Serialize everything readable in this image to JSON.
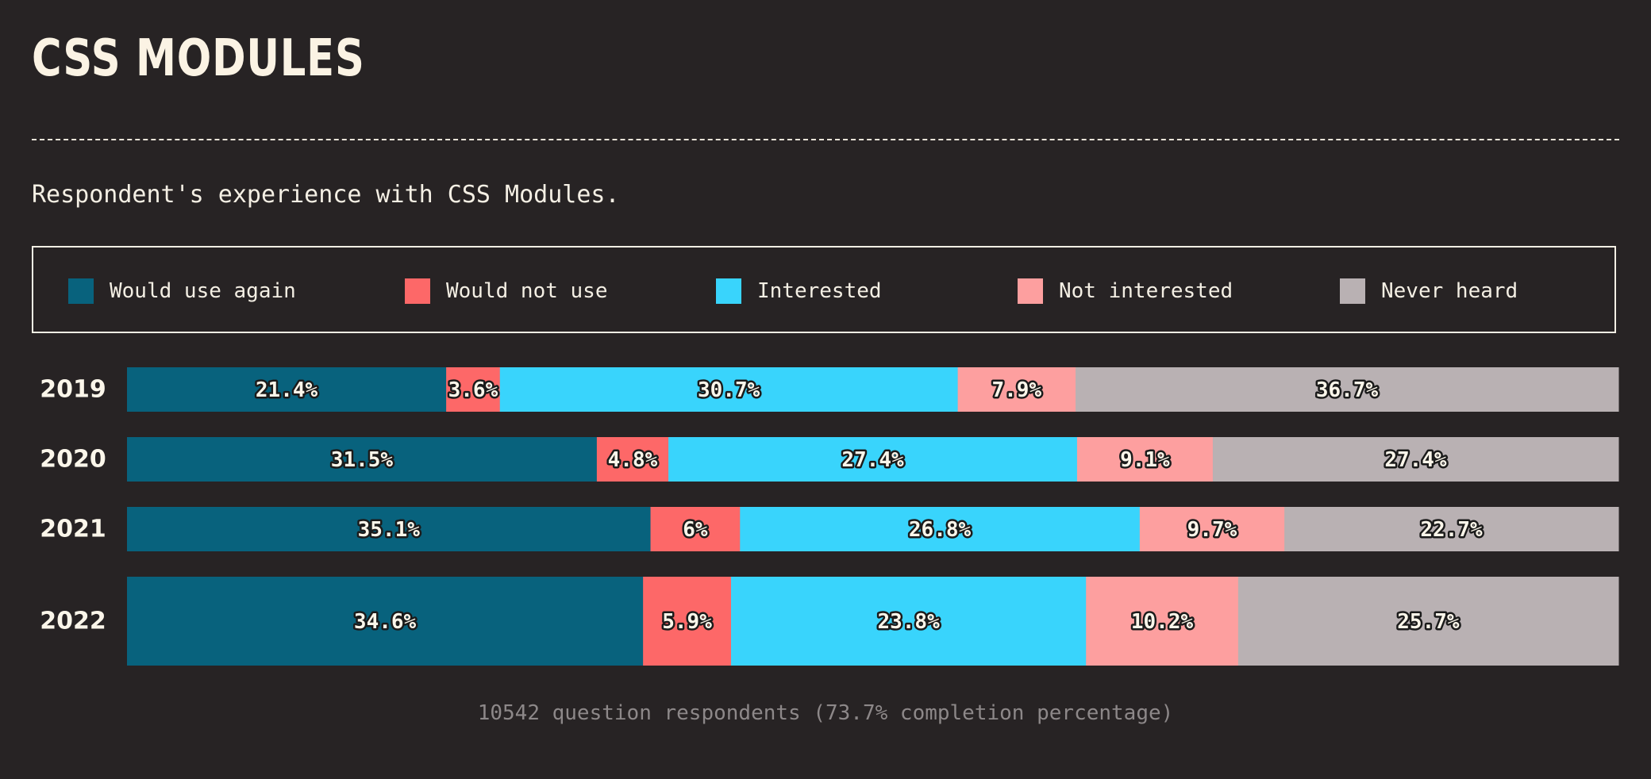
{
  "title": "CSS MODULES",
  "description": "Respondent's experience with CSS Modules.",
  "footer": "10542 question respondents (73.7% completion percentage)",
  "legend": [
    {
      "key": "would_use_again",
      "label": "Would use again",
      "color": "#08627d"
    },
    {
      "key": "would_not_use",
      "label": "Would not use",
      "color": "#fd6868"
    },
    {
      "key": "interested",
      "label": "Interested",
      "color": "#39d4fc"
    },
    {
      "key": "not_interested",
      "label": "Not interested",
      "color": "#fd9f9f"
    },
    {
      "key": "never_heard",
      "label": "Never heard",
      "color": "#b9b1b3"
    }
  ],
  "chart_data": {
    "type": "bar",
    "orientation": "horizontal",
    "stacked": true,
    "unit": "%",
    "categories": [
      "2019",
      "2020",
      "2021",
      "2022"
    ],
    "series": [
      {
        "name": "Would use again",
        "color": "#08627d",
        "values": [
          21.4,
          31.5,
          35.1,
          34.6
        ],
        "labels": [
          "21.4%",
          "31.5%",
          "35.1%",
          "34.6%"
        ]
      },
      {
        "name": "Would not use",
        "color": "#fd6868",
        "values": [
          3.6,
          4.8,
          6,
          5.9
        ],
        "labels": [
          "3.6%",
          "4.8%",
          "6%",
          "5.9%"
        ]
      },
      {
        "name": "Interested",
        "color": "#39d4fc",
        "values": [
          30.7,
          27.4,
          26.8,
          23.8
        ],
        "labels": [
          "30.7%",
          "27.4%",
          "26.8%",
          "23.8%"
        ]
      },
      {
        "name": "Not interested",
        "color": "#fd9f9f",
        "values": [
          7.9,
          9.1,
          9.7,
          10.2
        ],
        "labels": [
          "7.9%",
          "9.1%",
          "9.7%",
          "10.2%"
        ]
      },
      {
        "name": "Never heard",
        "color": "#b9b1b3",
        "values": [
          36.7,
          27.4,
          22.7,
          25.7
        ],
        "labels": [
          "36.7%",
          "27.4%",
          "22.7%",
          "25.7%"
        ]
      }
    ],
    "xlim": [
      0,
      100
    ],
    "grid": false,
    "legend_position": "top"
  }
}
